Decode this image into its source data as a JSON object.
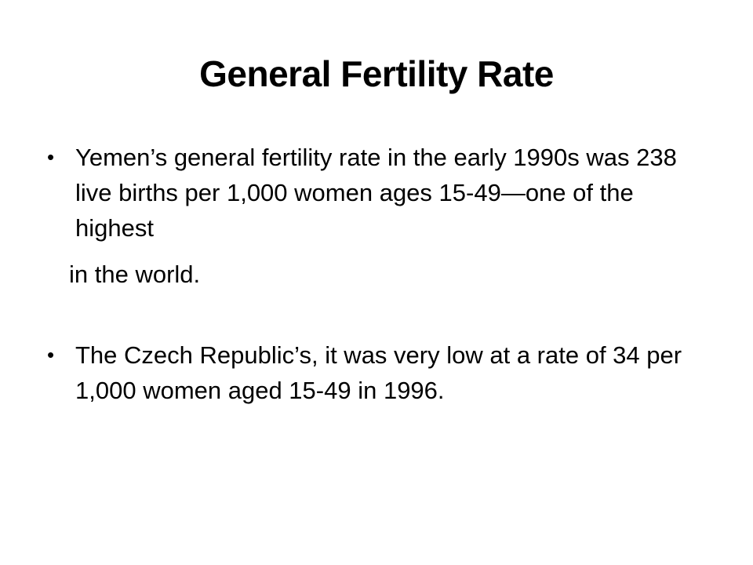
{
  "slide": {
    "title": "General Fertility Rate",
    "bullets": [
      {
        "text": "Yemen’s general fertility rate in the early 1990s was 238 live births per 1,000 women ages 15-49—one of the highest",
        "continuation": "in the world."
      },
      {
        "text": "The Czech Republic’s, it was very low at a rate of 34 per 1,000 women aged 15-49 in 1996."
      }
    ],
    "bullet_glyph": "•"
  }
}
